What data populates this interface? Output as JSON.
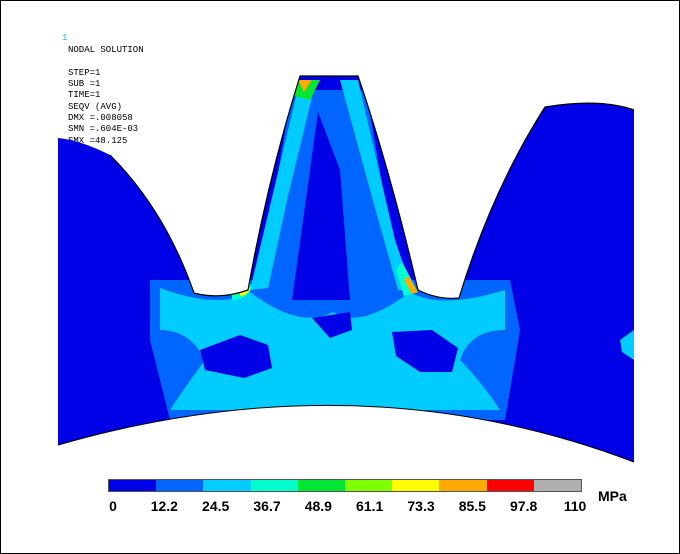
{
  "header": {
    "index": "1",
    "lines": [
      "NODAL SOLUTION",
      "STEP=1",
      "SUB =1",
      "TIME=1",
      "SEQV    (AVG)",
      "DMX =.008058",
      "SMN =.604E-03",
      "SMX =48.125"
    ]
  },
  "legend": {
    "ticks": [
      "0",
      "12.2",
      "24.5",
      "36.7",
      "48.9",
      "61.1",
      "73.3",
      "85.5",
      "97.8",
      "110"
    ],
    "unit": "MPa",
    "colors": [
      "#0000e6",
      "#0066ff",
      "#00ccff",
      "#00ffcc",
      "#00e632",
      "#7fff00",
      "#ffff00",
      "#ffaa00",
      "#ff0000",
      "#b0b0b0"
    ]
  },
  "palette": {
    "band0": "#0000e6",
    "band1": "#0066ff",
    "band2": "#00ccff",
    "band3": "#00ffcc",
    "band4": "#00e632",
    "band5": "#7fff00",
    "band6": "#ffff00",
    "band7": "#ffaa00",
    "band8": "#ff0000",
    "outline": "#000000"
  }
}
